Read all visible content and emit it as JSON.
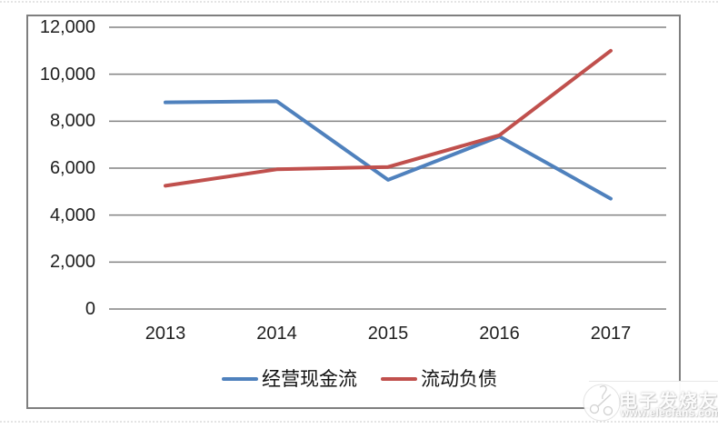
{
  "chart_data": {
    "type": "line",
    "categories": [
      "2013",
      "2014",
      "2015",
      "2016",
      "2017"
    ],
    "series": [
      {
        "name": "经营现金流",
        "color": "#4F81BD",
        "values": [
          8800,
          8850,
          5500,
          7350,
          4700
        ]
      },
      {
        "name": "流动负债",
        "color": "#C0504D",
        "values": [
          5250,
          5950,
          6050,
          7400,
          11000
        ]
      }
    ],
    "title": "",
    "xlabel": "",
    "ylabel": "",
    "ylim": [
      0,
      12000
    ],
    "ytick_step": 2000,
    "ytick_labels": [
      "0",
      "2,000",
      "4,000",
      "6,000",
      "8,000",
      "10,000",
      "12,000"
    ],
    "grid": true,
    "legend_position": "bottom"
  },
  "watermark": {
    "brand": "电子发烧友",
    "url": "www.elecfans.com"
  },
  "colors": {
    "gridline": "#828282",
    "chart_border": "#7F7F7F",
    "axis_text": "#1F1F1F"
  }
}
